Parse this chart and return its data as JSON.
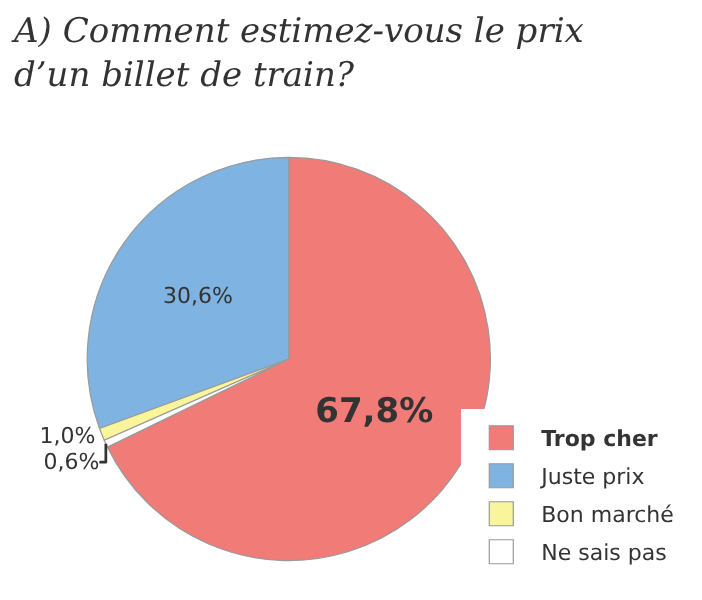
{
  "chart_data": {
    "type": "pie",
    "title": "A) Comment estimez-vous le prix d’un billet de train?",
    "categories": [
      "Trop cher",
      "Juste prix",
      "Bon marché",
      "Ne sais pas"
    ],
    "values": [
      67.8,
      30.6,
      1.0,
      0.6
    ],
    "colors": [
      "#f07b77",
      "#7fb3e2",
      "#f8f59a",
      "#ffffff"
    ],
    "value_labels": [
      "67,8%",
      "30,6%",
      "1,0%",
      "0,6%"
    ],
    "legend": "bottom right"
  }
}
